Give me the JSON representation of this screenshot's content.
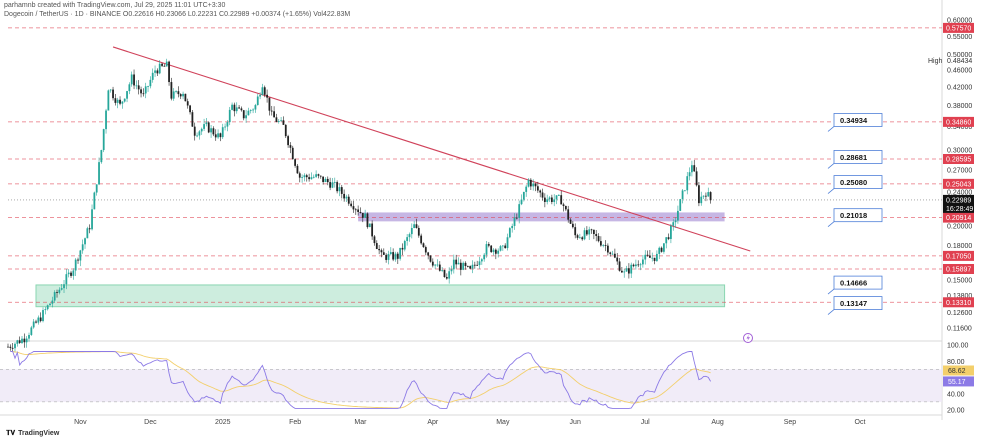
{
  "header": {
    "line1": "parhamnb created with TradingView.com, Jul 29, 2025 11:01 UTC+3:30",
    "line2": "Dogecoin / TetherUS · 1D · BINANCE  O0.22616  H0.23066  L0.22231  C0.22989  +0.00374 (+1.65%)  Vol422.83M"
  },
  "footer": {
    "brand": "TradingView",
    "logo_icon": "tradingview-logo-icon"
  },
  "colors": {
    "up": "#26a69a",
    "down": "#222222",
    "trendline": "#d0425a",
    "red_level": "#e04050",
    "purple_zone": "#b39ddb",
    "green_zone": "#a5dfc4",
    "rsi_line": "#8c7ae6",
    "rsi_ma": "#f3cf6b",
    "callout_border": "#4f7fd8"
  },
  "price_axis": {
    "ticks": [
      "0.60000",
      "0.55000",
      "0.50000",
      "0.46000",
      "0.42000",
      "0.38000",
      "0.34000",
      "0.30000",
      "0.27000",
      "0.24000",
      "0.22000",
      "0.20000",
      "0.18000",
      "0.16000",
      "0.15000",
      "0.13800",
      "0.12600",
      "0.11600"
    ],
    "high_marker": {
      "label": "High",
      "value": "0.48434"
    },
    "red_levels": [
      "0.57570",
      "0.34860",
      "0.28595",
      "0.25043",
      "0.20914",
      "0.17050",
      "0.15897",
      "0.13310"
    ],
    "current": {
      "price": "0.22989",
      "countdown": "16:28:49"
    }
  },
  "level_callouts": [
    "0.34934",
    "0.28681",
    "0.25080",
    "0.21018",
    "0.14666",
    "0.13147"
  ],
  "rsi_axis": {
    "ticks": [
      "100.00",
      "80.00",
      "40.00",
      "20.00"
    ],
    "rsi_value": "55.17",
    "ma_value": "68.62"
  },
  "x_axis": {
    "labels": [
      "Nov",
      "Dec",
      "2025",
      "Feb",
      "Mar",
      "Apr",
      "May",
      "Jun",
      "Jul",
      "Aug",
      "Sep",
      "Oct"
    ]
  },
  "chart_data": {
    "type": "candlestick",
    "symbol": "DOGE/USDT",
    "timeframe": "1D",
    "y_scale": "log",
    "ylim": [
      0.11,
      0.62
    ],
    "x_months": [
      "Nov",
      "Dec",
      "2025",
      "Feb",
      "Mar",
      "Apr",
      "May",
      "Jun",
      "Jul",
      "Aug",
      "Sep",
      "Oct"
    ],
    "price_path": [
      [
        "2024-10-01",
        0.105
      ],
      [
        "2024-10-08",
        0.11
      ],
      [
        "2024-10-15",
        0.123
      ],
      [
        "2024-10-22",
        0.14
      ],
      [
        "2024-10-29",
        0.16
      ],
      [
        "2024-11-05",
        0.2
      ],
      [
        "2024-11-10",
        0.3
      ],
      [
        "2024-11-13",
        0.42
      ],
      [
        "2024-11-18",
        0.38
      ],
      [
        "2024-11-23",
        0.44
      ],
      [
        "2024-11-28",
        0.4
      ],
      [
        "2024-12-03",
        0.46
      ],
      [
        "2024-12-08",
        0.47
      ],
      [
        "2024-12-10",
        0.4
      ],
      [
        "2024-12-15",
        0.41
      ],
      [
        "2024-12-20",
        0.33
      ],
      [
        "2024-12-25",
        0.34
      ],
      [
        "2024-12-31",
        0.32
      ],
      [
        "2025-01-05",
        0.38
      ],
      [
        "2025-01-10",
        0.36
      ],
      [
        "2025-01-15",
        0.38
      ],
      [
        "2025-01-18",
        0.43
      ],
      [
        "2025-01-22",
        0.36
      ],
      [
        "2025-01-27",
        0.34
      ],
      [
        "2025-02-03",
        0.26
      ],
      [
        "2025-02-10",
        0.26
      ],
      [
        "2025-02-17",
        0.25
      ],
      [
        "2025-02-24",
        0.23
      ],
      [
        "2025-03-03",
        0.21
      ],
      [
        "2025-03-10",
        0.17
      ],
      [
        "2025-03-17",
        0.17
      ],
      [
        "2025-03-24",
        0.2
      ],
      [
        "2025-03-31",
        0.168
      ],
      [
        "2025-04-07",
        0.15
      ],
      [
        "2025-04-10",
        0.165
      ],
      [
        "2025-04-17",
        0.157
      ],
      [
        "2025-04-24",
        0.178
      ],
      [
        "2025-05-01",
        0.176
      ],
      [
        "2025-05-08",
        0.22
      ],
      [
        "2025-05-12",
        0.255
      ],
      [
        "2025-05-19",
        0.232
      ],
      [
        "2025-05-26",
        0.23
      ],
      [
        "2025-06-01",
        0.19
      ],
      [
        "2025-06-08",
        0.192
      ],
      [
        "2025-06-15",
        0.178
      ],
      [
        "2025-06-22",
        0.155
      ],
      [
        "2025-06-29",
        0.167
      ],
      [
        "2025-07-06",
        0.17
      ],
      [
        "2025-07-13",
        0.2
      ],
      [
        "2025-07-21",
        0.28
      ],
      [
        "2025-07-24",
        0.23
      ],
      [
        "2025-07-27",
        0.24
      ],
      [
        "2025-07-29",
        0.22989
      ]
    ],
    "trendline": [
      [
        "2024-11-15",
        0.52
      ],
      [
        "2025-08-15",
        0.175
      ]
    ],
    "purple_zone": [
      0.205,
      0.215
    ],
    "green_zone": [
      0.13,
      0.146
    ],
    "rsi": {
      "last": 55.17,
      "ma_last": 68.62,
      "levels": [
        70,
        30
      ]
    }
  }
}
